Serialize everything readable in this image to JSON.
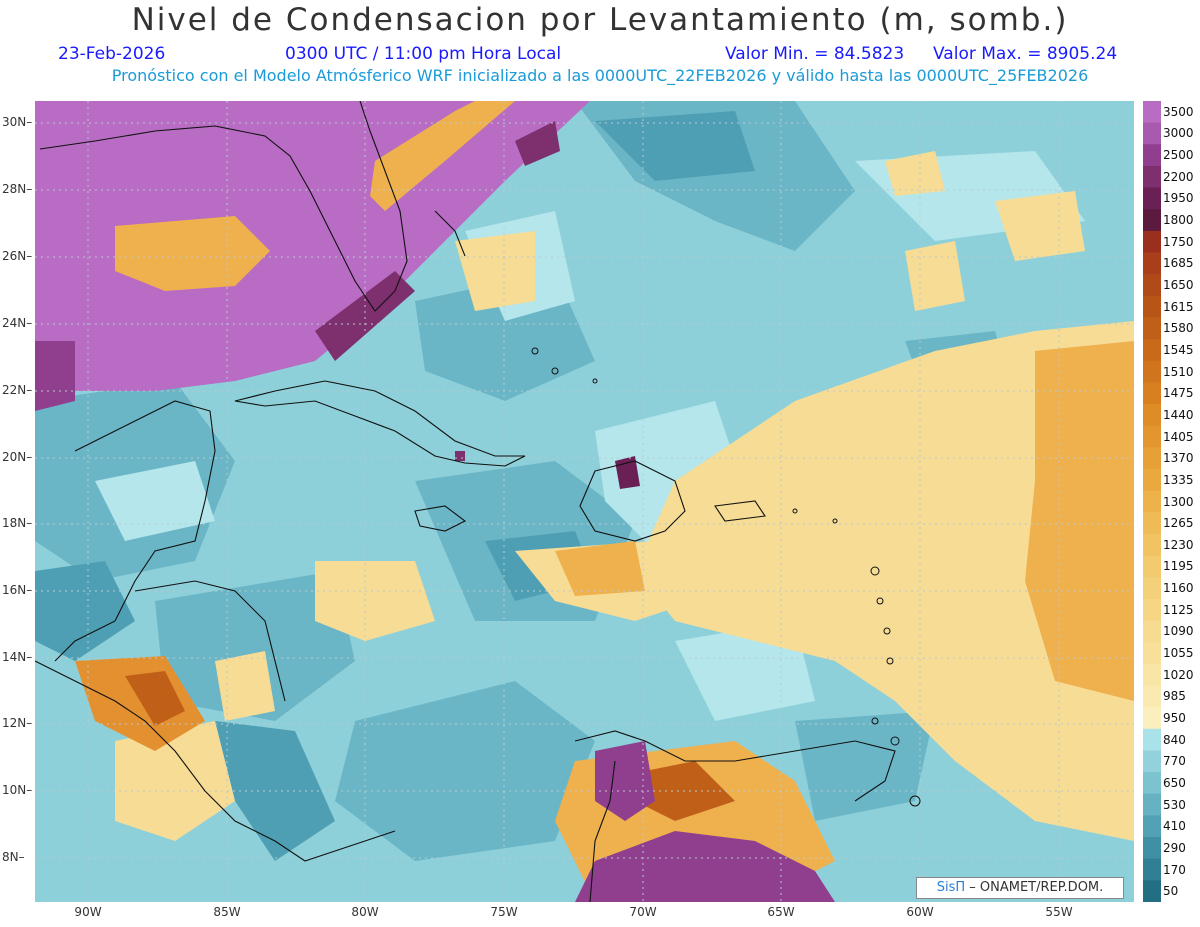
{
  "title": "Nivel de Condensacion por Levantamiento (m, somb.)",
  "date": "23-Feb-2026",
  "time": "0300 UTC / 11:00 pm Hora Local",
  "valor_min": "Valor Min. = 84.5823",
  "valor_max": "Valor Max. = 8905.24",
  "model_info": "Pronóstico con el Modelo Atmósferico WRF inicializado a las 0000UTC_22FEB2026 y válido hasta las  0000UTC_25FEB2026",
  "lat_labels": [
    "30N",
    "28N",
    "26N",
    "24N",
    "22N",
    "20N",
    "18N",
    "16N",
    "14N",
    "12N",
    "10N",
    "8N"
  ],
  "lon_labels": [
    "90W",
    "85W",
    "80W",
    "75W",
    "70W",
    "65W",
    "60W",
    "55W"
  ],
  "legend": {
    "labels": [
      "3500",
      "3000",
      "2500",
      "2200",
      "1950",
      "1800",
      "1750",
      "1685",
      "1650",
      "1615",
      "1580",
      "1545",
      "1510",
      "1475",
      "1440",
      "1405",
      "1370",
      "1335",
      "1300",
      "1265",
      "1230",
      "1195",
      "1160",
      "1125",
      "1090",
      "1055",
      "1020",
      "985",
      "950",
      "840",
      "770",
      "650",
      "530",
      "410",
      "290",
      "170",
      "50"
    ],
    "colors": [
      "#b86cc4",
      "#a85aaf",
      "#8f3f8d",
      "#7d2f6e",
      "#6a1f55",
      "#5c1a3e",
      "#9a2f1d",
      "#a93f1a",
      "#b04a18",
      "#b85516",
      "#c06018",
      "#c86a1a",
      "#d0751d",
      "#d88020",
      "#de8c25",
      "#e3962d",
      "#e7a036",
      "#eaa93f",
      "#edb24a",
      "#efbb56",
      "#f1c362",
      "#f3ca6e",
      "#f5d07a",
      "#f6d685",
      "#f7db90",
      "#f8e09b",
      "#f9e5a6",
      "#faeab2",
      "#fbefbe",
      "#a9e3e9",
      "#93d2dc",
      "#7cc2cf",
      "#66b2c2",
      "#52a1b4",
      "#4090a5",
      "#307f95",
      "#246e83"
    ]
  },
  "credit_logo": "SisΠ",
  "credit_text": " – ONAMET/REP.DOM."
}
